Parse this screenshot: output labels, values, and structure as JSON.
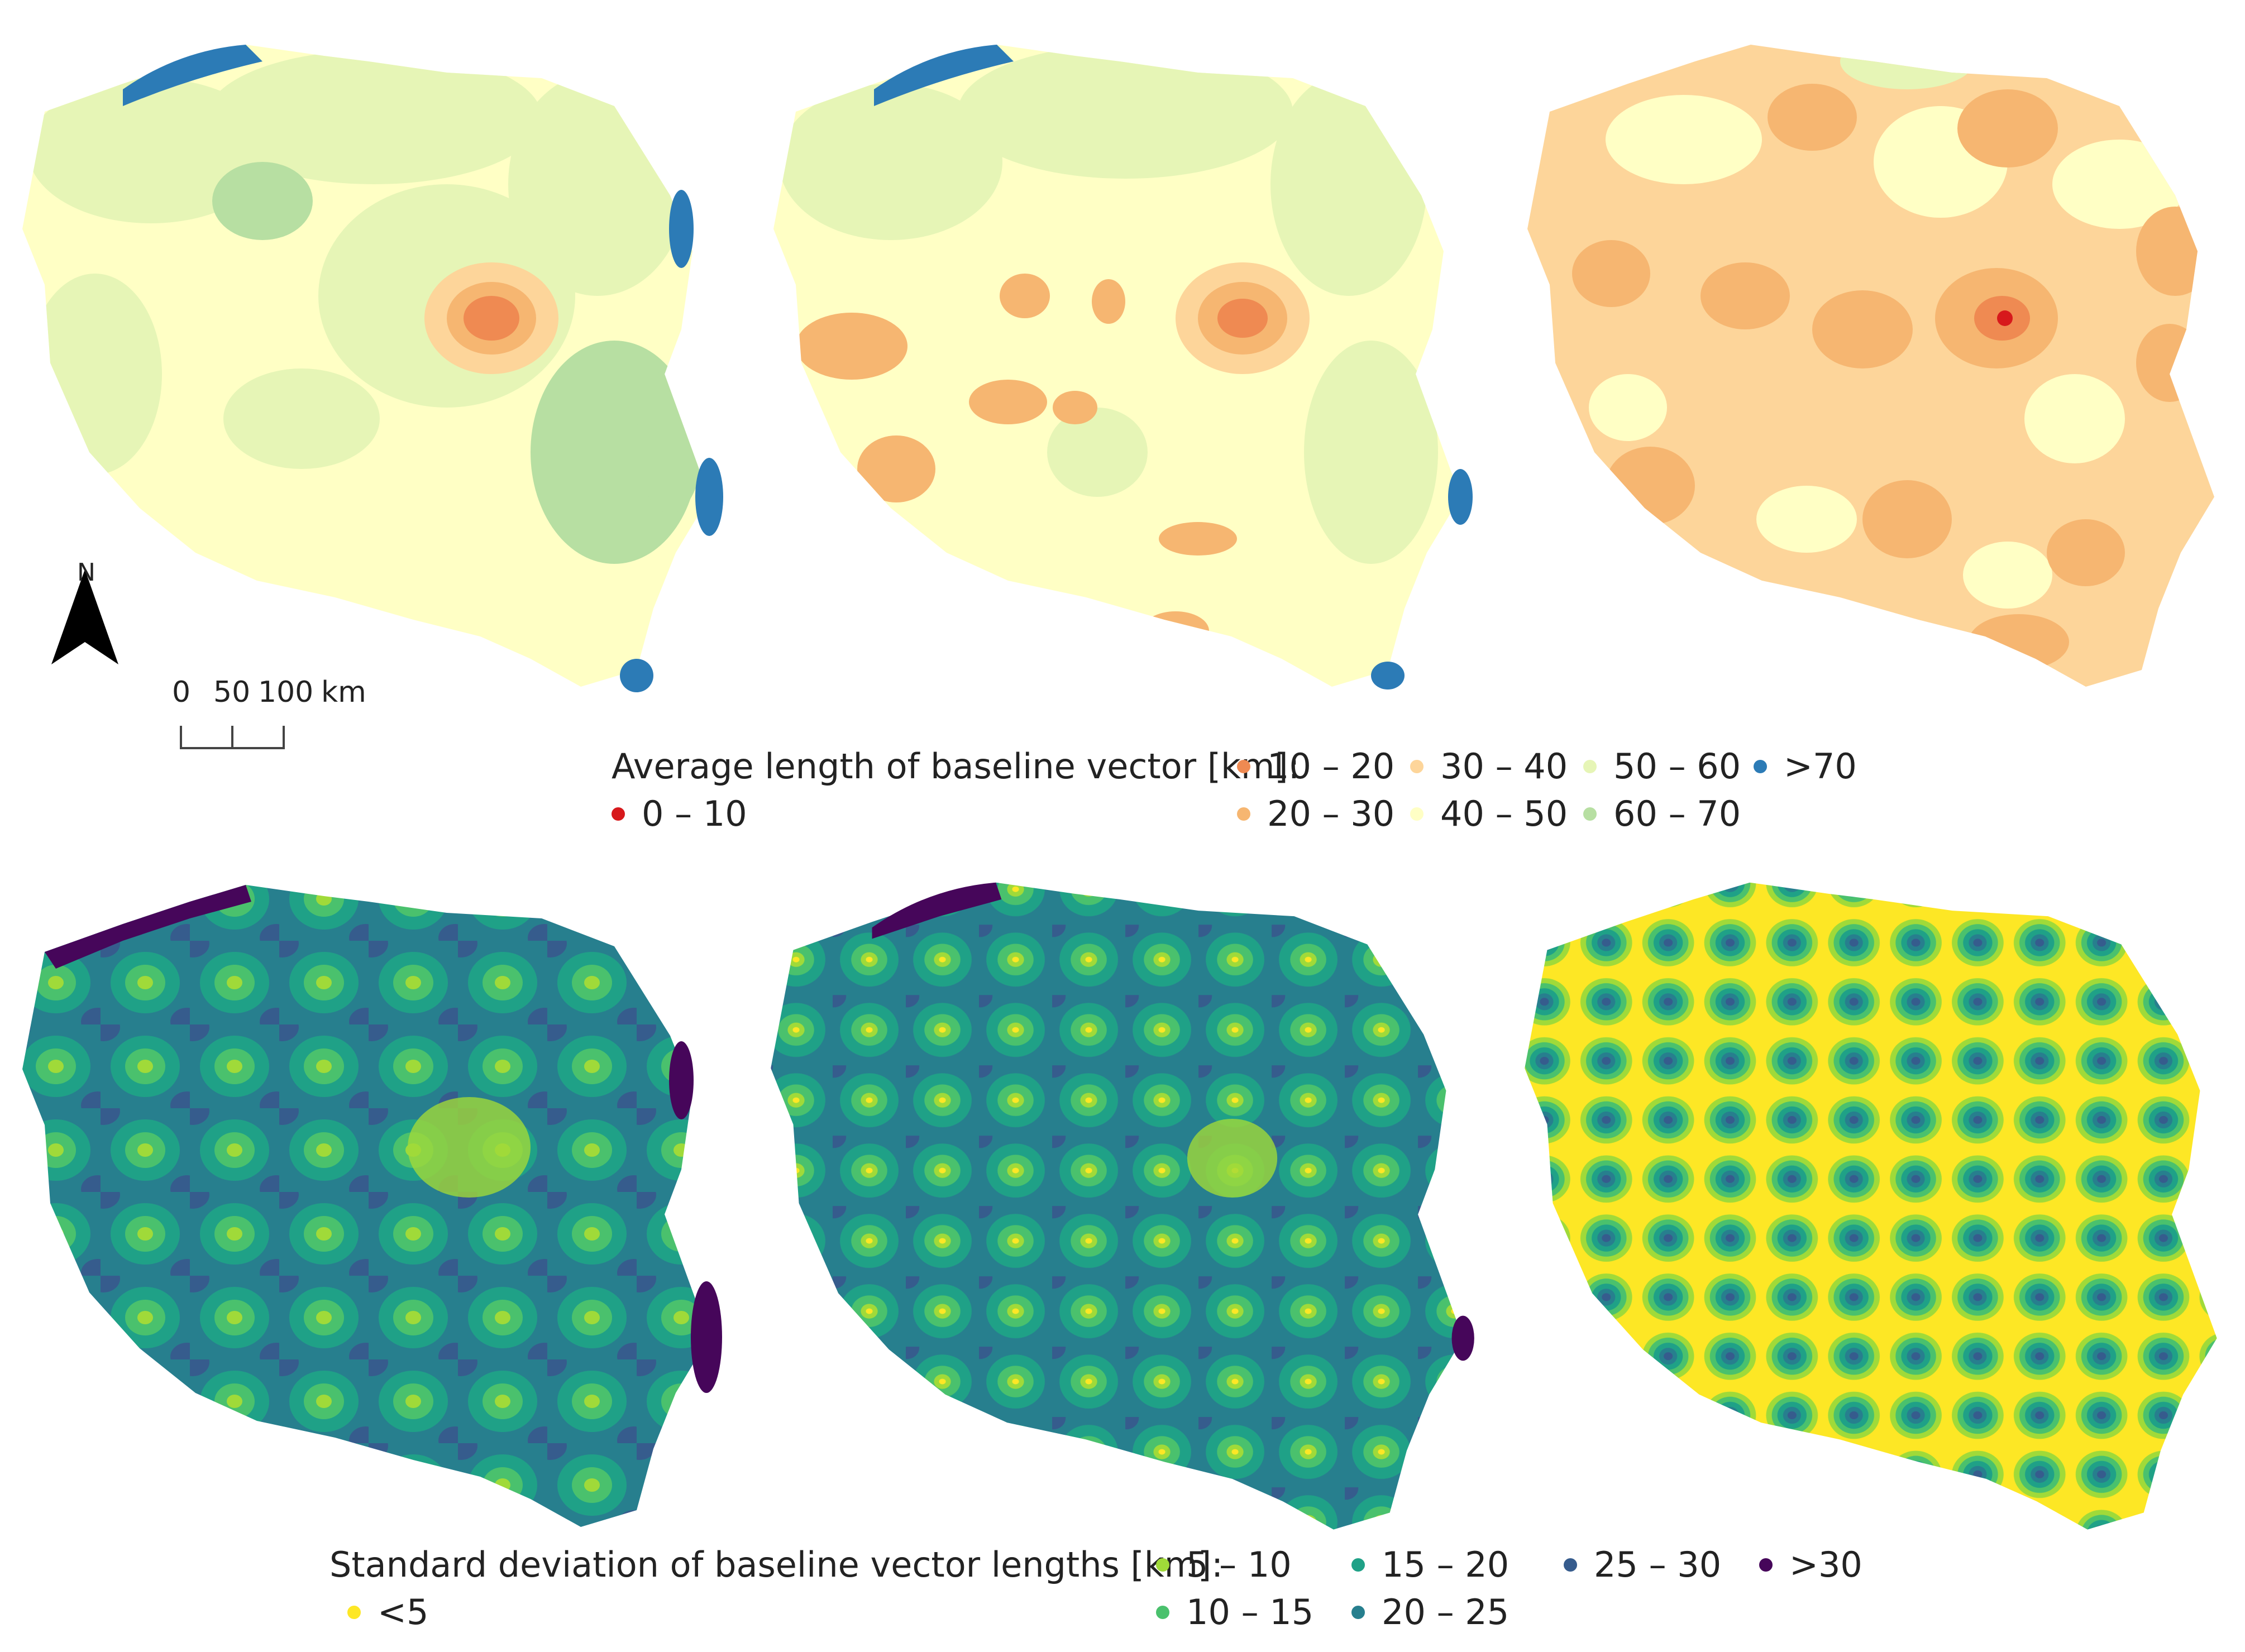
{
  "legend_top": {
    "title": "Average length of baseline vector [km]:",
    "items": [
      {
        "label": "0 – 10",
        "color": "#d7191c"
      },
      {
        "label": "10 – 20",
        "color": "#ef8a52"
      },
      {
        "label": "20 – 30",
        "color": "#f6b671"
      },
      {
        "label": "30 – 40",
        "color": "#fdd59a"
      },
      {
        "label": "40 – 50",
        "color": "#ffffc5"
      },
      {
        "label": "50 – 60",
        "color": "#e6f5b6"
      },
      {
        "label": "60 – 70",
        "color": "#b7dfa2"
      },
      {
        "label": ">70",
        "color": "#2c7bb6"
      }
    ]
  },
  "legend_bottom": {
    "title": "Standard deviation of baseline vector lengths [km]:",
    "items": [
      {
        "label": "<5",
        "color": "#fde725"
      },
      {
        "label": "5 – 10",
        "color": "#a0da39"
      },
      {
        "label": "10 – 15",
        "color": "#4ac16d"
      },
      {
        "label": "15 – 20",
        "color": "#1fa187"
      },
      {
        "label": "20 – 25",
        "color": "#277f8e"
      },
      {
        "label": "25 – 30",
        "color": "#365c8d"
      },
      {
        "label": ">30",
        "color": "#46065a"
      }
    ]
  },
  "north_label": "N",
  "scale_labels": [
    "0",
    "50",
    "100",
    "km"
  ]
}
